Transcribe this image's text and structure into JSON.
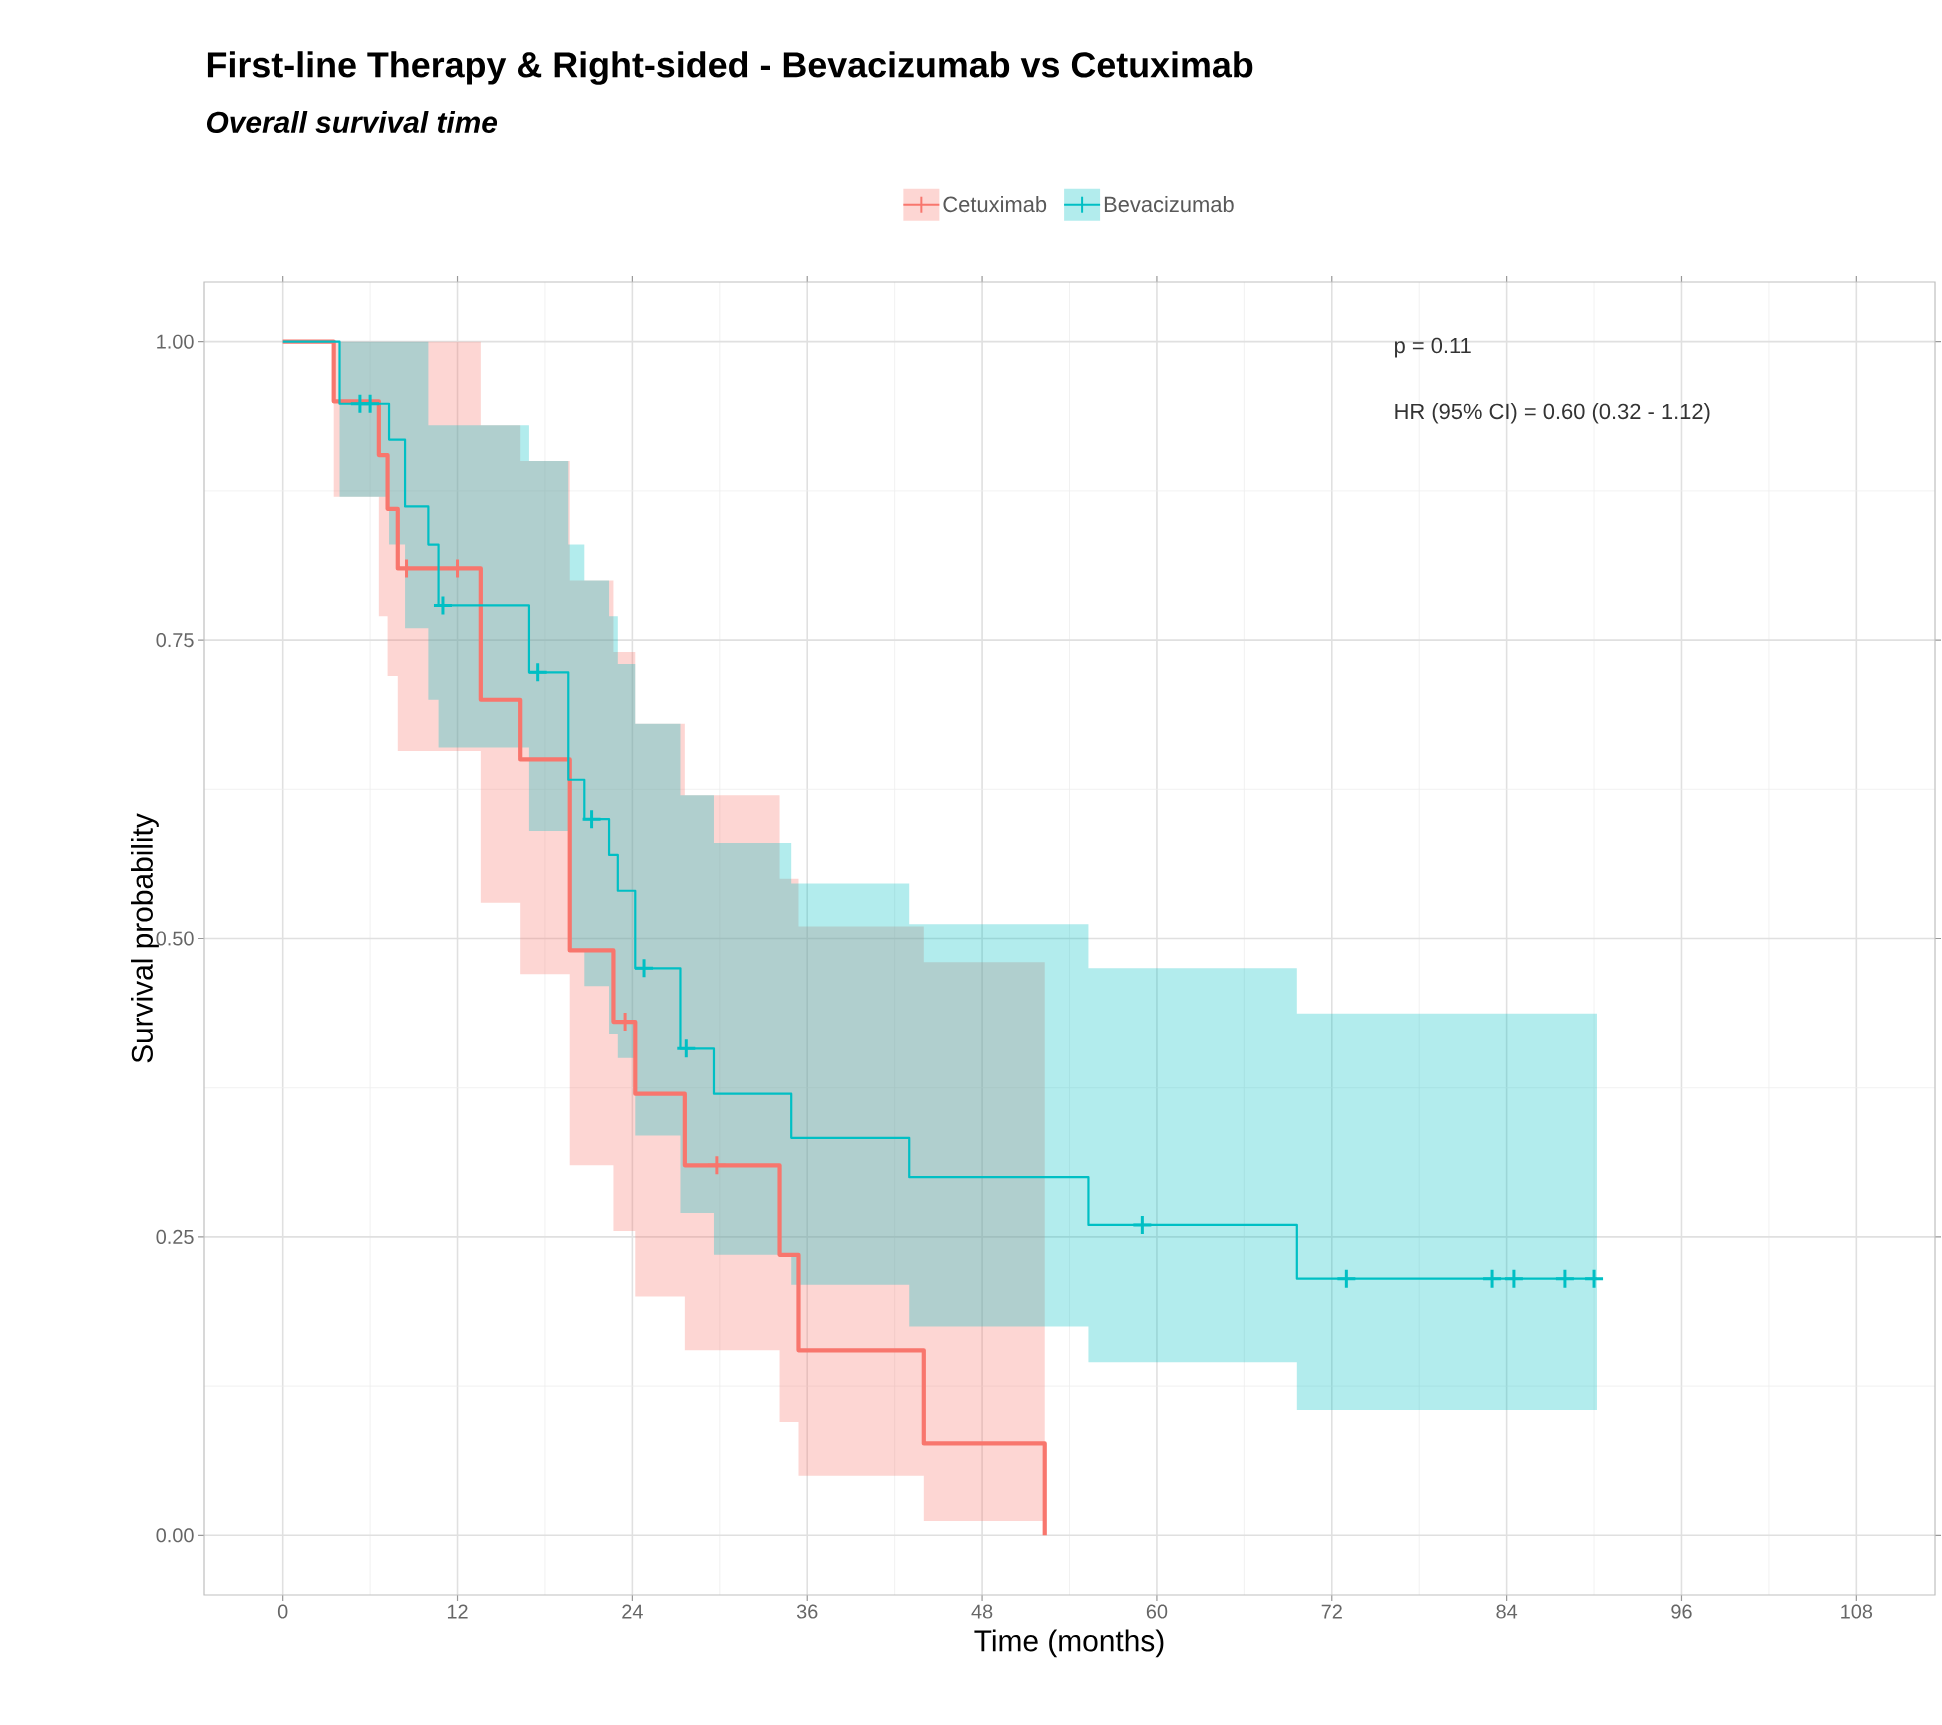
{
  "chart_data": {
    "type": "step",
    "title": "First-line Therapy & Right-sided - Bevacizumab vs Cetuximab",
    "subtitle": "Overall survival time",
    "xlabel": "Time (months)",
    "ylabel": "Survival probability",
    "xlim": [
      -5.4,
      113.4
    ],
    "ylim": [
      -0.05,
      1.05
    ],
    "xticks": [
      0,
      12,
      24,
      36,
      48,
      60,
      72,
      84,
      96,
      108
    ],
    "yticks": [
      {
        "value": 0,
        "label": "0.00"
      },
      {
        "value": 0.25,
        "label": "0.25"
      },
      {
        "value": 0.5,
        "label": "0.50"
      },
      {
        "value": 0.75,
        "label": "0.75"
      },
      {
        "value": 1,
        "label": "1.00"
      }
    ],
    "grid": true,
    "legend": "top",
    "annotations": [
      "p = 0.11",
      "HR (95% CI) = 0.60 (0.32 - 1.12)"
    ],
    "series": [
      {
        "name": "Cetuximab",
        "color": "#f8766d",
        "x": [
          0,
          3.5,
          6.6,
          7.2,
          7.9,
          13.6,
          16.3,
          19.7,
          22.7,
          24.2,
          27.6,
          34.1,
          35.4,
          44.0,
          52.3
        ],
        "values": [
          1,
          0.95,
          0.905,
          0.86,
          0.81,
          0.7,
          0.65,
          0.49,
          0.43,
          0.37,
          0.31,
          0.235,
          0.155,
          0.077,
          0
        ],
        "lower": [
          1,
          0.87,
          0.77,
          0.72,
          0.657,
          0.53,
          0.47,
          0.31,
          0.255,
          0.2,
          0.155,
          0.095,
          0.05,
          0.012,
          0.012
        ],
        "upper": [
          1,
          1,
          1,
          1,
          1,
          0.93,
          0.9,
          0.8,
          0.74,
          0.68,
          0.62,
          0.55,
          0.51,
          0.48,
          0.48
        ]
      },
      {
        "name": "Bevacizumab",
        "color": "#00bfc4",
        "x": [
          0,
          3.9,
          7.3,
          8.4,
          10.0,
          10.7,
          16.9,
          19.6,
          20.7,
          22.4,
          23.0,
          24.2,
          27.3,
          29.6,
          34.9,
          43.0,
          55.3,
          69.6,
          90.2
        ],
        "values": [
          1,
          0.948,
          0.918,
          0.862,
          0.83,
          0.779,
          0.723,
          0.633,
          0.6,
          0.57,
          0.54,
          0.475,
          0.408,
          0.37,
          0.333,
          0.3,
          0.26,
          0.215,
          0.215
        ],
        "lower": [
          1,
          0.87,
          0.83,
          0.76,
          0.7,
          0.66,
          0.59,
          0.49,
          0.46,
          0.42,
          0.4,
          0.335,
          0.27,
          0.235,
          0.21,
          0.175,
          0.145,
          0.105,
          0.105
        ],
        "upper": [
          1,
          1,
          1,
          1,
          0.93,
          0.93,
          0.9,
          0.83,
          0.8,
          0.77,
          0.73,
          0.68,
          0.62,
          0.58,
          0.546,
          0.512,
          0.475,
          0.437,
          0.437
        ]
      },
      {
        "type": "scatter",
        "marker": "cross",
        "color": "#f8766d",
        "x": [
          8.5,
          12.0,
          23.5,
          29.8
        ],
        "values": [
          0.81,
          0.81,
          0.43,
          0.31
        ]
      },
      {
        "type": "scatter",
        "marker": "cross",
        "color": "#00bfc4",
        "x": [
          5.3,
          6.0,
          11.0,
          17.5,
          21.2,
          24.8,
          27.7,
          59.0,
          73.0,
          83.0,
          84.5,
          88.0,
          90.0
        ],
        "values": [
          0.948,
          0.948,
          0.779,
          0.723,
          0.6,
          0.475,
          0.408,
          0.26,
          0.215,
          0.215,
          0.215,
          0.215,
          0.215
        ]
      }
    ]
  }
}
